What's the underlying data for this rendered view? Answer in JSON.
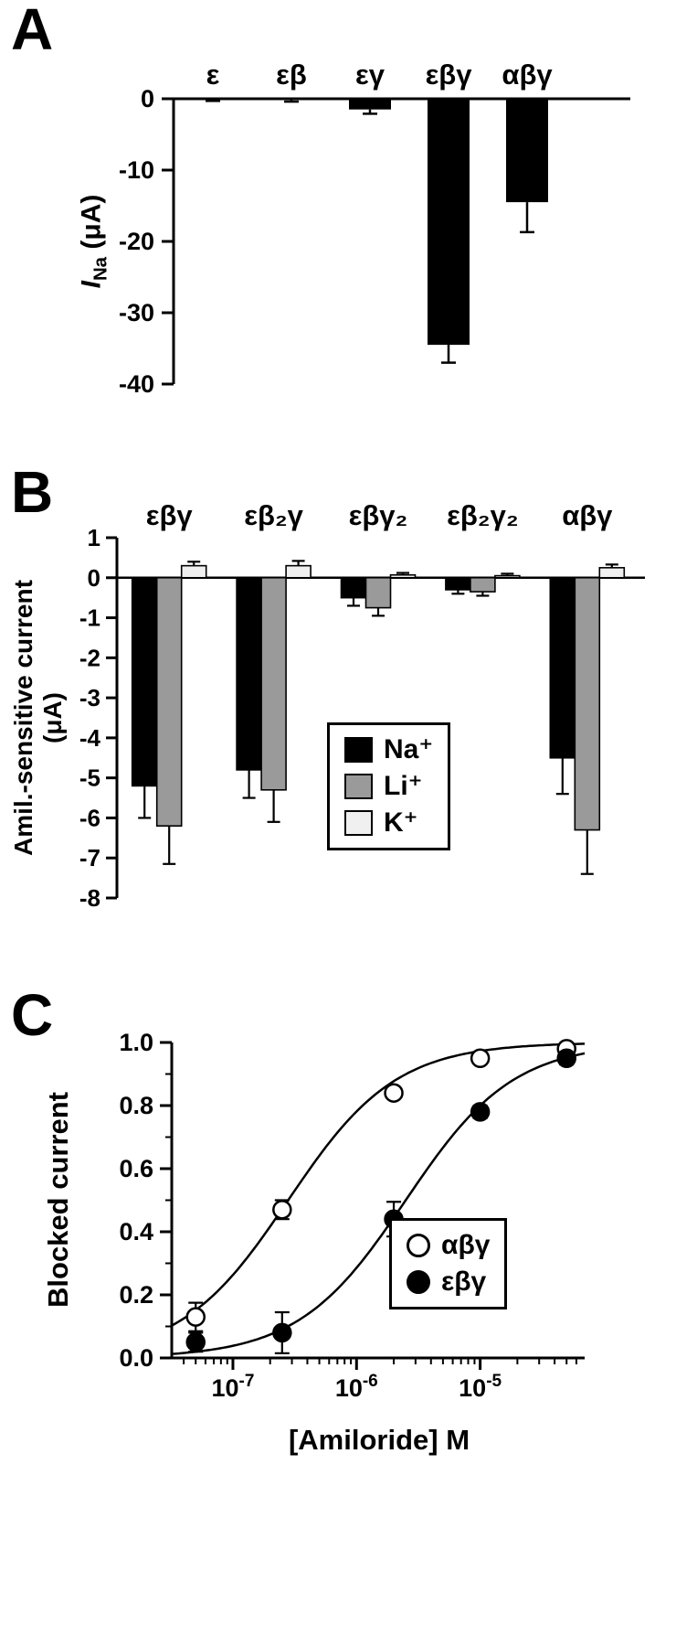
{
  "chart_data": [
    {
      "id": "A",
      "panel_label": "A",
      "type": "bar",
      "categories": [
        "ε",
        "εβ",
        "εγ",
        "εβγ",
        "αβγ"
      ],
      "values": [
        -0.1,
        -0.15,
        -1.5,
        -34.5,
        -14.5
      ],
      "errors": [
        0.2,
        0.25,
        0.6,
        2.5,
        4.2
      ],
      "ylabel_symbol": "I",
      "ylabel_subscript": "Na",
      "ylabel_unit": " (μA)",
      "ylim": [
        -40,
        0
      ],
      "yticks": [
        0,
        -10,
        -20,
        -30,
        -40
      ],
      "bar_color": "#000000"
    },
    {
      "id": "B",
      "panel_label": "B",
      "type": "grouped-bar",
      "categories": [
        "εβγ",
        "εβ₂γ",
        "εβγ₂",
        "εβ₂γ₂",
        "αβγ"
      ],
      "series": [
        {
          "name": "Na⁺",
          "color": "#000000",
          "values": [
            -5.2,
            -4.8,
            -0.5,
            -0.3,
            -4.5
          ],
          "errors": [
            0.8,
            0.7,
            0.2,
            0.1,
            0.9
          ]
        },
        {
          "name": "Li⁺",
          "color": "#9a9a9a",
          "values": [
            -6.2,
            -5.3,
            -0.75,
            -0.35,
            -6.3
          ],
          "errors": [
            0.95,
            0.8,
            0.2,
            0.1,
            1.1
          ]
        },
        {
          "name": "K⁺",
          "color": "#f0f0f0",
          "values": [
            0.3,
            0.3,
            0.07,
            0.05,
            0.25
          ],
          "errors": [
            0.1,
            0.12,
            0.05,
            0.05,
            0.08
          ]
        }
      ],
      "ylabel_line1": "Amil.-sensitive current",
      "ylabel_line2": "(μA)",
      "ylim": [
        -8,
        1
      ],
      "yticks": [
        1,
        0,
        -1,
        -2,
        -3,
        -4,
        -5,
        -6,
        -7,
        -8
      ],
      "legend_position": "inside-right"
    },
    {
      "id": "C",
      "panel_label": "C",
      "type": "scatter-line",
      "xlabel": "[Amiloride] M",
      "ylabel": "Blocked current",
      "xscale": "log",
      "xlim": [
        3.2e-08,
        7e-05
      ],
      "xtick_exponents": [
        -7,
        -6,
        -5
      ],
      "ylim": [
        0,
        1
      ],
      "yticks": [
        0,
        0.2,
        0.4,
        0.6,
        0.8,
        1
      ],
      "series": [
        {
          "name": "αβγ",
          "marker": "open",
          "hill": 1,
          "ic50": 2.8e-07,
          "x": [
            5e-08,
            2.5e-07,
            2e-06,
            1e-05,
            5e-05
          ],
          "y": [
            0.13,
            0.47,
            0.84,
            0.95,
            0.98
          ],
          "errors": [
            0.045,
            0.03,
            0.015,
            0.012,
            0.012
          ]
        },
        {
          "name": "εβγ",
          "marker": "filled",
          "hill": 1,
          "ic50": 2.5e-06,
          "x": [
            5e-08,
            2.5e-07,
            2e-06,
            1e-05,
            5e-05
          ],
          "y": [
            0.05,
            0.08,
            0.44,
            0.78,
            0.95
          ],
          "errors": [
            0.03,
            0.065,
            0.055,
            0.02,
            0.02
          ]
        }
      ]
    }
  ]
}
